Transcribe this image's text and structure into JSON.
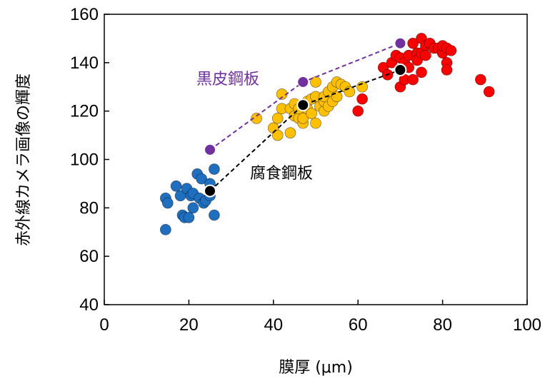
{
  "chart_data": {
    "type": "scatter",
    "title": "",
    "xlabel": "膜厚 (μm)",
    "ylabel": "赤外線カメラ画像の輝度",
    "xlim": [
      0,
      100
    ],
    "ylim": [
      40,
      160
    ],
    "xticks": [
      "0",
      "20",
      "40",
      "60",
      "80",
      "100"
    ],
    "yticks": [
      "40",
      "60",
      "80",
      "100",
      "120",
      "140",
      "160"
    ],
    "grid": false,
    "scatter_groups": [
      {
        "color": "#1f6fc0",
        "points": [
          [
            14.5,
            84
          ],
          [
            15,
            82
          ],
          [
            14.5,
            71
          ],
          [
            17,
            89
          ],
          [
            18,
            85
          ],
          [
            18.5,
            77
          ],
          [
            19,
            76
          ],
          [
            19.5,
            88
          ],
          [
            20,
            76
          ],
          [
            20.5,
            85
          ],
          [
            21,
            80
          ],
          [
            21,
            86
          ],
          [
            22,
            94
          ],
          [
            22.5,
            84
          ],
          [
            23,
            92
          ],
          [
            23.5,
            82
          ],
          [
            24,
            83
          ],
          [
            25,
            85
          ],
          [
            25,
            90
          ],
          [
            26,
            96
          ],
          [
            26,
            77
          ]
        ]
      },
      {
        "color": "#ffc000",
        "points": [
          [
            36,
            117
          ],
          [
            40,
            113
          ],
          [
            41,
            110
          ],
          [
            41,
            117
          ],
          [
            42,
            121
          ],
          [
            42,
            127
          ],
          [
            44,
            111
          ],
          [
            44,
            121
          ],
          [
            45,
            118
          ],
          [
            45,
            123
          ],
          [
            46,
            117
          ],
          [
            46,
            121
          ],
          [
            47,
            115
          ],
          [
            47,
            117
          ],
          [
            48,
            121
          ],
          [
            48,
            124
          ],
          [
            49,
            119
          ],
          [
            49,
            125
          ],
          [
            50,
            115
          ],
          [
            50,
            126
          ],
          [
            50,
            132
          ],
          [
            51,
            122
          ],
          [
            52,
            120
          ],
          [
            52,
            124
          ],
          [
            52,
            126
          ],
          [
            53,
            122
          ],
          [
            53,
            128
          ],
          [
            54,
            124
          ],
          [
            54,
            130
          ],
          [
            55,
            132
          ],
          [
            55,
            126
          ],
          [
            56,
            131
          ],
          [
            57,
            130
          ],
          [
            58,
            128
          ],
          [
            61,
            130
          ]
        ]
      },
      {
        "color": "#ff0000",
        "points": [
          [
            60,
            120
          ],
          [
            61,
            125
          ],
          [
            66,
            138
          ],
          [
            67,
            135
          ],
          [
            68,
            140
          ],
          [
            69,
            143
          ],
          [
            70,
            142
          ],
          [
            70,
            130
          ],
          [
            71,
            133
          ],
          [
            71,
            140
          ],
          [
            72,
            143
          ],
          [
            72,
            138
          ],
          [
            73,
            148
          ],
          [
            73,
            133
          ],
          [
            74,
            144
          ],
          [
            74,
            141
          ],
          [
            75,
            150
          ],
          [
            75,
            136
          ],
          [
            75,
            144
          ],
          [
            76,
            147
          ],
          [
            76,
            143
          ],
          [
            77,
            148
          ],
          [
            78,
            146
          ],
          [
            79,
            146
          ],
          [
            80,
            144
          ],
          [
            80,
            147
          ],
          [
            81,
            146
          ],
          [
            81,
            140
          ],
          [
            81,
            137
          ],
          [
            82,
            145
          ],
          [
            89,
            133
          ],
          [
            91,
            128
          ]
        ]
      }
    ],
    "series": [
      {
        "name": "黒皮鋼板",
        "color": "#7030a0",
        "dash": true,
        "points": [
          [
            25,
            104
          ],
          [
            47,
            132
          ],
          [
            70,
            148
          ]
        ]
      },
      {
        "name": "腐食鋼板",
        "color": "#000000",
        "dash": true,
        "points": [
          [
            25,
            87
          ],
          [
            47,
            122.5
          ],
          [
            70,
            137
          ]
        ]
      }
    ]
  }
}
